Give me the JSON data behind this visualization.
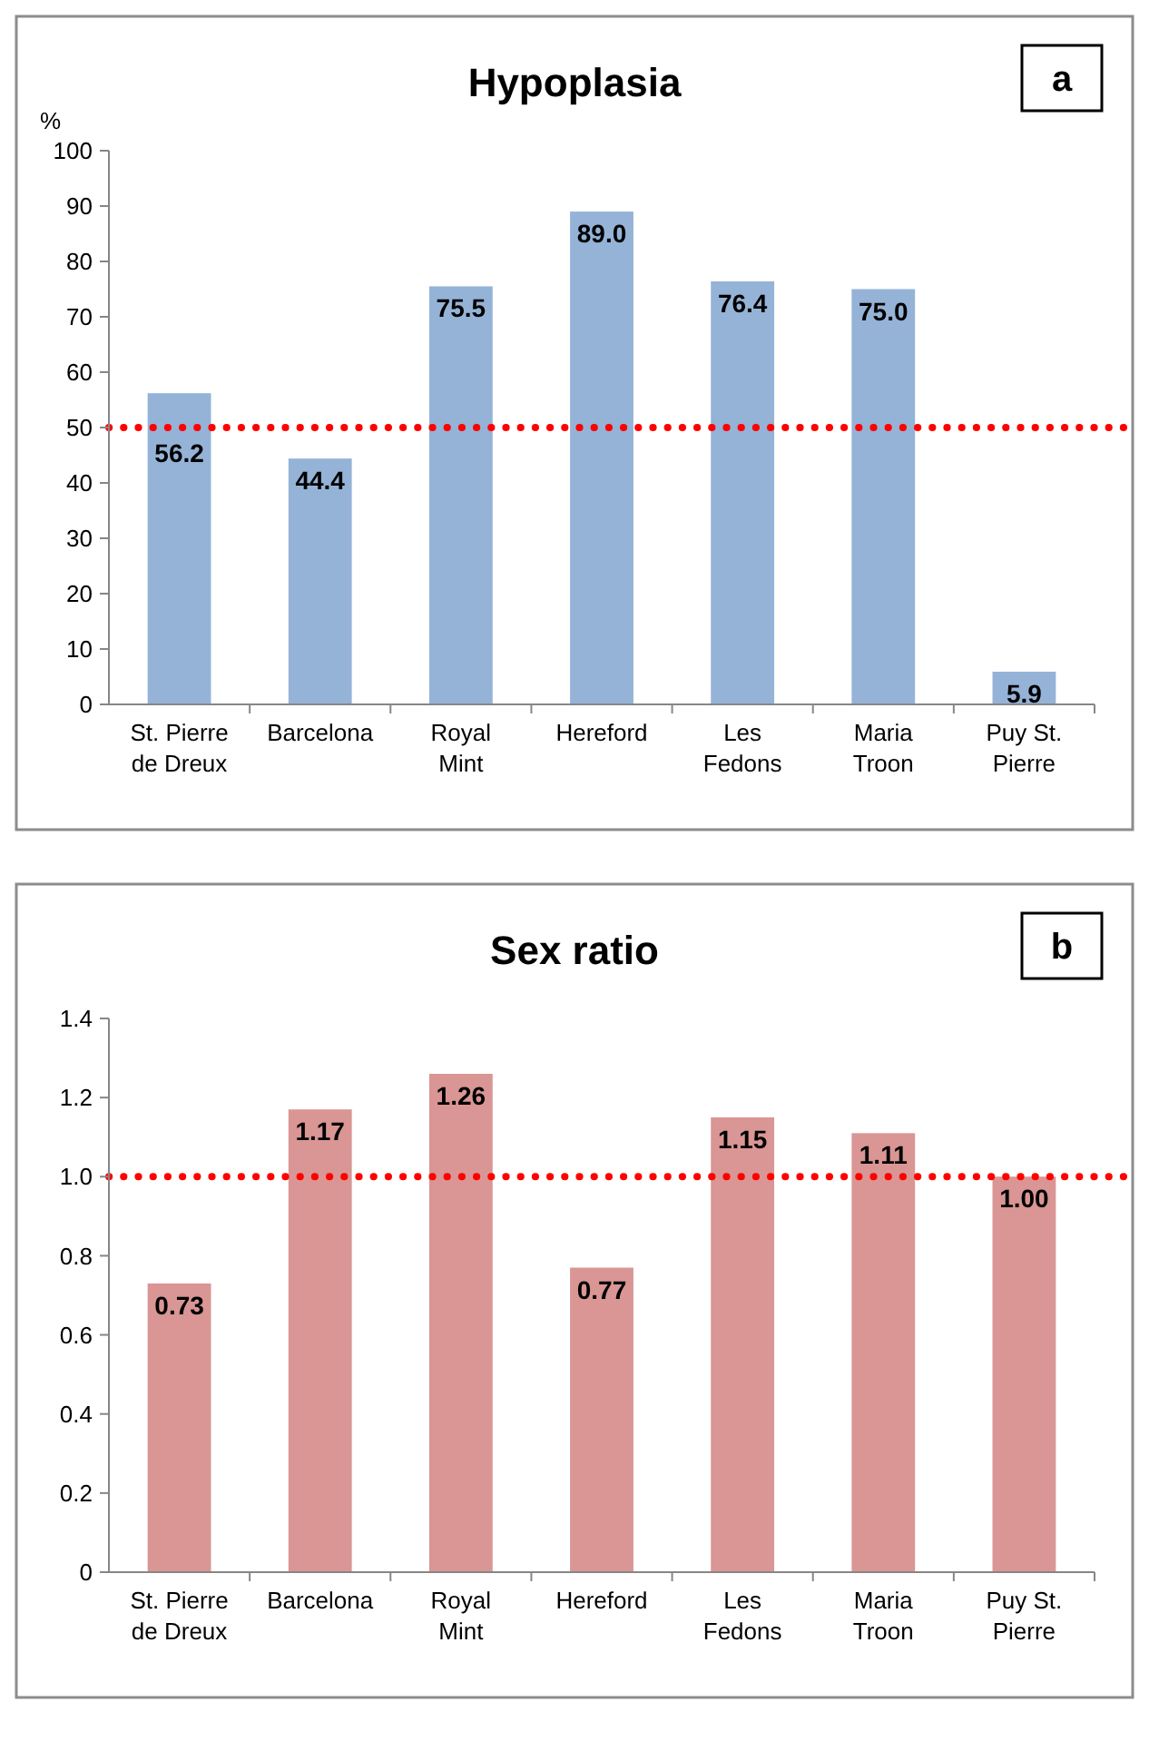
{
  "chart_data": [
    {
      "type": "bar",
      "title": "Hypoplasia",
      "ylabel": "%",
      "annotations": [
        "a"
      ],
      "categories": [
        "St. Pierre de Dreux",
        "Barcelona",
        "Royal Mint",
        "Hereford",
        "Les Fedons",
        "Maria Troon",
        "Puy St. Pierre"
      ],
      "values": [
        56.2,
        44.4,
        75.5,
        89.0,
        76.4,
        75.0,
        5.9
      ],
      "value_labels": [
        "56.2",
        "44.4",
        "75.5",
        "89.0",
        "76.4",
        "75.0",
        "5.9"
      ],
      "color": "#95b3d7",
      "ylim": [
        0,
        100
      ],
      "yticks": [
        0,
        10,
        20,
        30,
        40,
        50,
        60,
        70,
        80,
        90,
        100
      ],
      "ref_lines": [
        {
          "axis": "y",
          "value": 50,
          "color": "#ff0000",
          "line_style": "dotted"
        }
      ]
    },
    {
      "type": "bar",
      "title": "Sex ratio",
      "annotations": [
        "b"
      ],
      "categories": [
        "St. Pierre de Dreux",
        "Barcelona",
        "Royal Mint",
        "Hereford",
        "Les Fedons",
        "Maria Troon",
        "Puy St. Pierre"
      ],
      "values": [
        0.73,
        1.17,
        1.26,
        0.77,
        1.15,
        1.11,
        1.0
      ],
      "value_labels": [
        "0.73",
        "1.17",
        "1.26",
        "0.77",
        "1.15",
        "1.11",
        "1.00"
      ],
      "color": "#d99694",
      "ylim": [
        0,
        1.4
      ],
      "yticks": [
        0,
        0.2,
        0.4,
        0.6,
        0.8,
        {
          "value": 1,
          "label": "1.0"
        },
        1.2,
        1.4
      ],
      "ref_lines": [
        {
          "axis": "y",
          "value": 1,
          "color": "#ff0000",
          "line_style": "dotted"
        }
      ]
    }
  ]
}
